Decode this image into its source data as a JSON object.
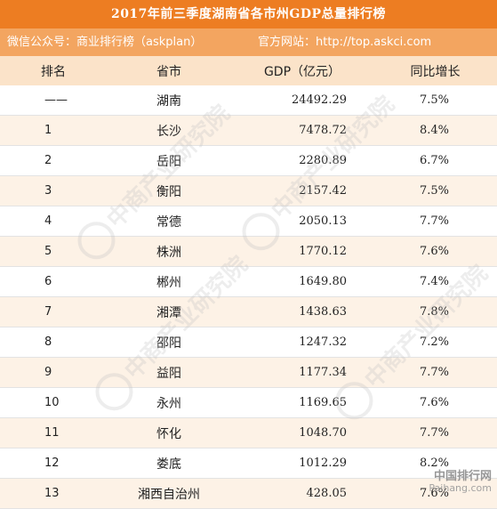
{
  "header": {
    "title": "2017年前三季度湖南省各市州GDP总量排行榜",
    "subtitle_left": "微信公众号：商业排行榜（askplan）",
    "subtitle_right": "官方网站：http://top.askci.com"
  },
  "table": {
    "columns": [
      "排名",
      "省市",
      "GDP（亿元）",
      "同比增长"
    ],
    "rows": [
      {
        "rank": "——",
        "city": "湖南",
        "gdp": "24492.29",
        "growth": "7.5%"
      },
      {
        "rank": "1",
        "city": "长沙",
        "gdp": "7478.72",
        "growth": "8.4%"
      },
      {
        "rank": "2",
        "city": "岳阳",
        "gdp": "2280.89",
        "growth": "6.7%"
      },
      {
        "rank": "3",
        "city": "衡阳",
        "gdp": "2157.42",
        "growth": "7.5%"
      },
      {
        "rank": "4",
        "city": "常德",
        "gdp": "2050.13",
        "growth": "7.7%"
      },
      {
        "rank": "5",
        "city": "株洲",
        "gdp": "1770.12",
        "growth": "7.6%"
      },
      {
        "rank": "6",
        "city": "郴州",
        "gdp": "1649.80",
        "growth": "7.4%"
      },
      {
        "rank": "7",
        "city": "湘潭",
        "gdp": "1438.63",
        "growth": "7.8%"
      },
      {
        "rank": "8",
        "city": "邵阳",
        "gdp": "1247.32",
        "growth": "7.2%"
      },
      {
        "rank": "9",
        "city": "益阳",
        "gdp": "1177.34",
        "growth": "7.7%"
      },
      {
        "rank": "10",
        "city": "永州",
        "gdp": "1169.65",
        "growth": "7.6%"
      },
      {
        "rank": "11",
        "city": "怀化",
        "gdp": "1048.70",
        "growth": "7.7%"
      },
      {
        "rank": "12",
        "city": "娄底",
        "gdp": "1012.29",
        "growth": "8.2%"
      },
      {
        "rank": "13",
        "city": "湘西自治州",
        "gdp": "428.05",
        "growth": "7.6%"
      }
    ]
  },
  "watermark": {
    "text": "中商产业研究院",
    "url": "www.askci.com/reports/"
  },
  "corner_logo": {
    "line1": "中国排行网",
    "line2": "Paihang.com"
  },
  "colors": {
    "title_bg": "#ed7d22",
    "subtitle_bg": "#f3a560",
    "header_row_bg": "#fbe3c9",
    "stripe_bg": "#fdf2e6"
  }
}
